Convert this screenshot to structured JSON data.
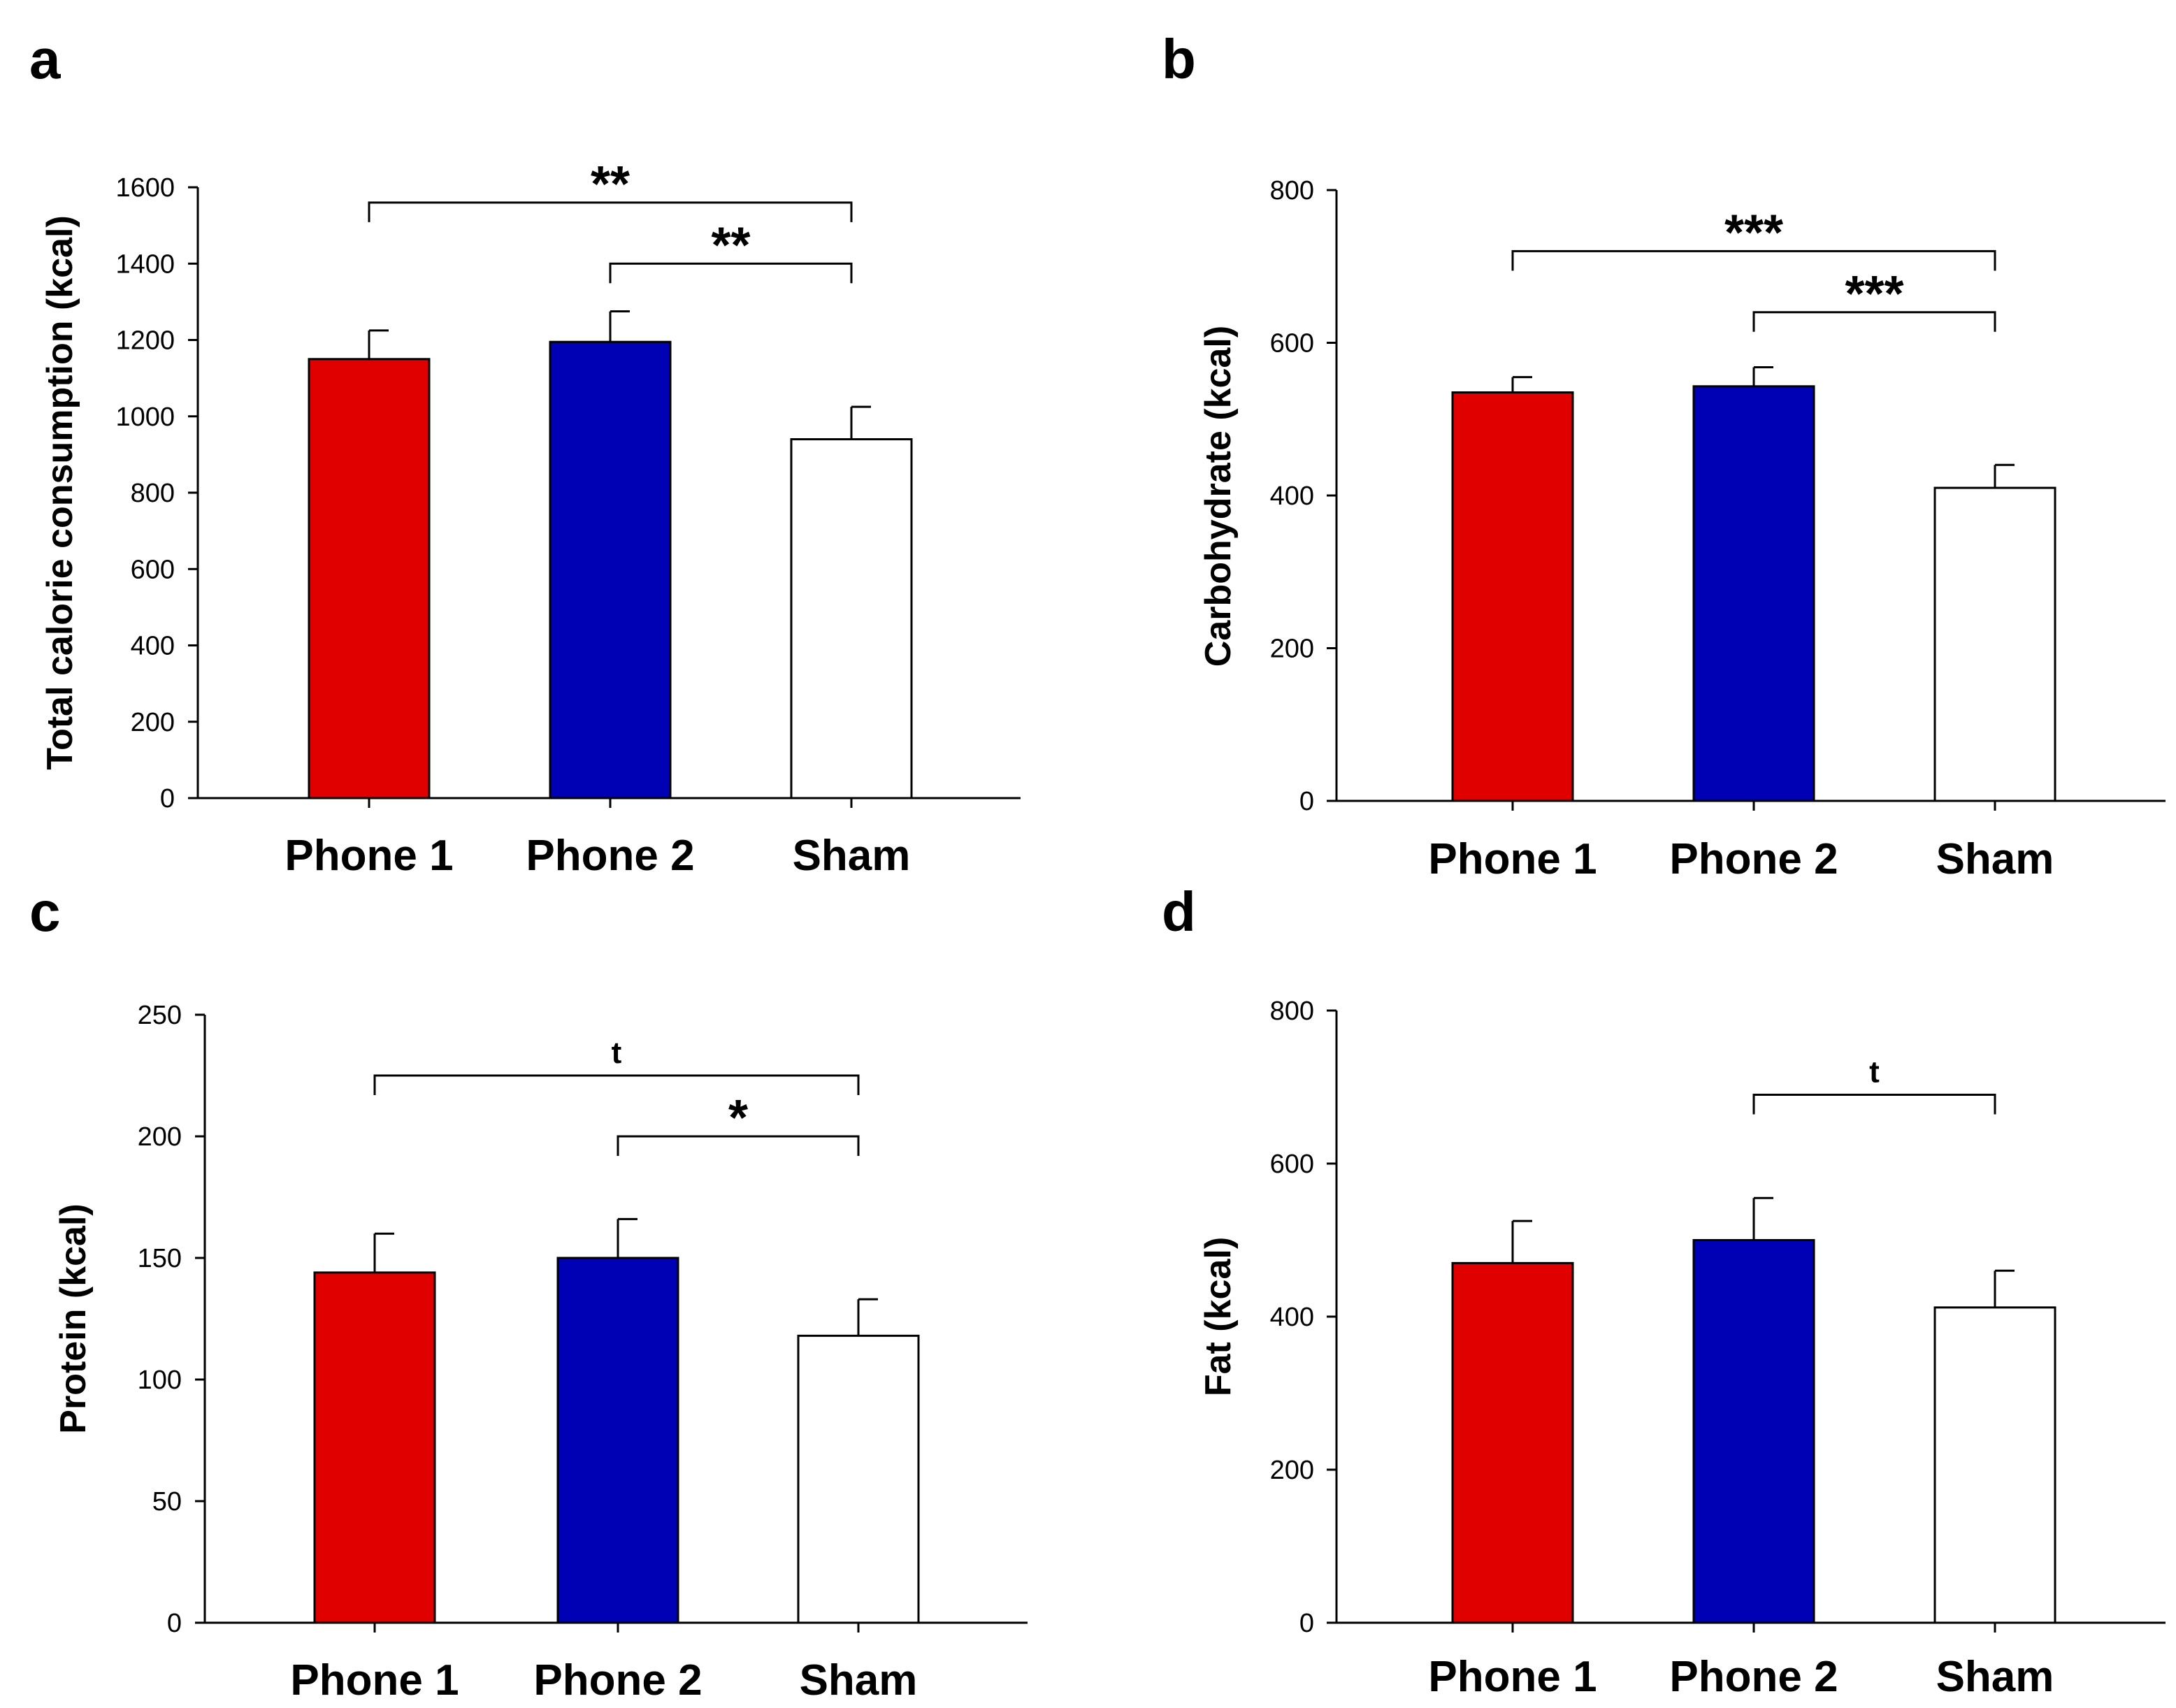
{
  "colors": {
    "phone1": "#e00000",
    "phone2": "#0000b4",
    "sham": "#ffffff",
    "stroke": "#000000"
  },
  "chart_data": [
    {
      "panel": "a",
      "type": "bar",
      "categories": [
        "Phone 1",
        "Phone 2",
        "Sham"
      ],
      "values": [
        1150,
        1195,
        940
      ],
      "errors": [
        75,
        80,
        85
      ],
      "ylabel": "Total calorie consumption (kcal)",
      "ylim": [
        0,
        1600
      ],
      "yticks": [
        0,
        200,
        400,
        600,
        800,
        1000,
        1200,
        1400,
        1600
      ],
      "significance": [
        {
          "from": 0,
          "to": 2,
          "level": 1560,
          "label": "**"
        },
        {
          "from": 1,
          "to": 2,
          "level": 1400,
          "label": "**"
        }
      ]
    },
    {
      "panel": "b",
      "type": "bar",
      "categories": [
        "Phone 1",
        "Phone 2",
        "Sham"
      ],
      "values": [
        535,
        543,
        410
      ],
      "errors": [
        20,
        25,
        30
      ],
      "ylabel": "Carbohydrate (kcal)",
      "ylim": [
        0,
        800
      ],
      "yticks": [
        0,
        200,
        400,
        600,
        800
      ],
      "significance": [
        {
          "from": 0,
          "to": 2,
          "level": 720,
          "label": "***"
        },
        {
          "from": 1,
          "to": 2,
          "level": 640,
          "label": "***"
        }
      ]
    },
    {
      "panel": "c",
      "type": "bar",
      "categories": [
        "Phone 1",
        "Phone 2",
        "Sham"
      ],
      "values": [
        144,
        150,
        118
      ],
      "errors": [
        16,
        16,
        15
      ],
      "ylabel": "Protein (kcal)",
      "ylim": [
        0,
        250
      ],
      "yticks": [
        0,
        50,
        100,
        150,
        200,
        250
      ],
      "significance": [
        {
          "from": 0,
          "to": 2,
          "level": 225,
          "label": "t"
        },
        {
          "from": 1,
          "to": 2,
          "level": 200,
          "label": "*"
        }
      ]
    },
    {
      "panel": "d",
      "type": "bar",
      "categories": [
        "Phone 1",
        "Phone 2",
        "Sham"
      ],
      "values": [
        470,
        500,
        412
      ],
      "errors": [
        55,
        55,
        48
      ],
      "ylabel": "Fat (kcal)",
      "ylim": [
        0,
        800
      ],
      "yticks": [
        0,
        200,
        400,
        600,
        800
      ],
      "significance": [
        {
          "from": 1,
          "to": 2,
          "level": 690,
          "label": "t"
        }
      ]
    }
  ]
}
